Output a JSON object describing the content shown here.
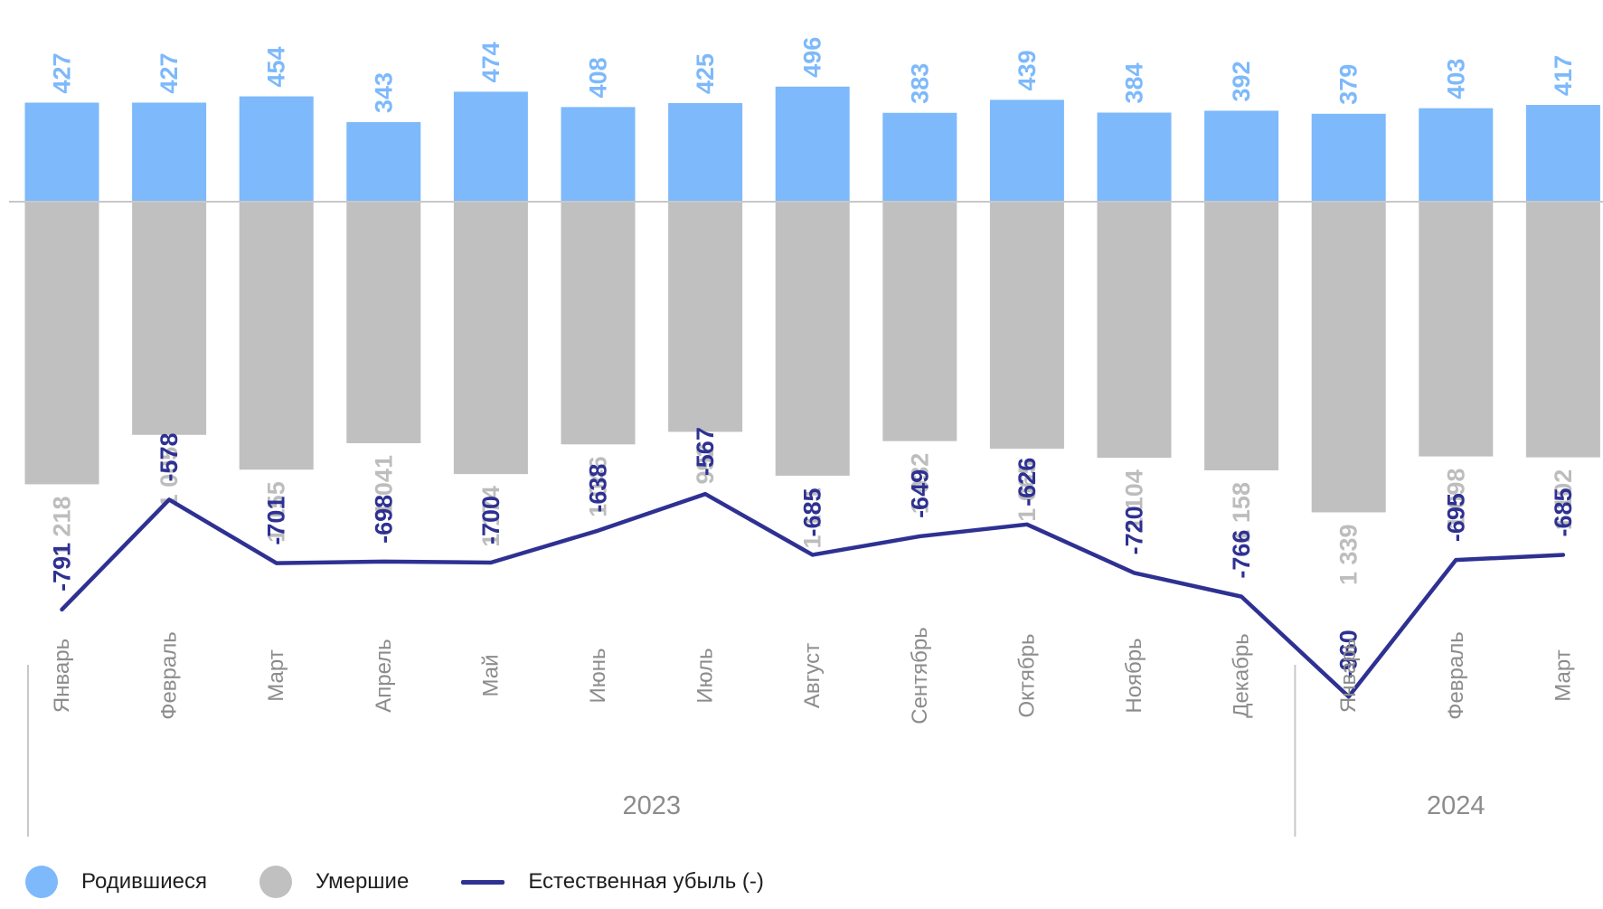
{
  "chart_data": {
    "type": "bar",
    "categories": [
      "Январь",
      "Февраль",
      "Март",
      "Апрель",
      "Май",
      "Июнь",
      "Июль",
      "Август",
      "Сентябрь",
      "Октябрь",
      "Ноябрь",
      "Декабрь",
      "Январь",
      "Февраль",
      "Март"
    ],
    "groups": [
      {
        "label": "2023",
        "count": 12
      },
      {
        "label": "2024",
        "count": 3
      }
    ],
    "series": [
      {
        "name": "Родившиеся",
        "type": "bar",
        "color": "#7db9fb",
        "values": [
          427,
          427,
          454,
          343,
          474,
          408,
          425,
          496,
          383,
          439,
          384,
          392,
          379,
          403,
          417
        ],
        "labels": [
          "427",
          "427",
          "454",
          "343",
          "474",
          "408",
          "425",
          "496",
          "383",
          "439",
          "384",
          "392",
          "379",
          "403",
          "417"
        ]
      },
      {
        "name": "Умершие",
        "type": "bar",
        "color": "#c0c0c0",
        "values": [
          1218,
          1005,
          1155,
          1041,
          1174,
          1046,
          992,
          1181,
          1032,
          1065,
          1104,
          1158,
          1339,
          1098,
          1102
        ],
        "labels": [
          "1 218",
          "1 005",
          "1 155",
          "1 041",
          "1 174",
          "1 046",
          "992",
          "1 181",
          "1 032",
          "1 065",
          "1 104",
          "1 158",
          "1 339",
          "1 098",
          "1 102"
        ]
      },
      {
        "name": "Естественная убыль (-)",
        "type": "line",
        "color": "#2e3192",
        "values": [
          -791,
          -578,
          -701,
          -698,
          -700,
          -638,
          -567,
          -685,
          -649,
          -626,
          -720,
          -766,
          -960,
          -695,
          -685
        ],
        "labels": [
          "-791",
          "-578",
          "-701",
          "-698",
          "-700",
          "-638",
          "-567",
          "-685",
          "-649",
          "-626",
          "-720",
          "-766",
          "-960",
          "-695",
          "-685"
        ]
      }
    ],
    "legend_position": "bottom-left",
    "grid": false
  },
  "colors": {
    "births": "#7db9fb",
    "deaths": "#c0c0c0",
    "decline": "#2e3192",
    "axis_text": "#8c8c8c",
    "births_label": "#7db9fb",
    "deaths_label": "#bdbdbd",
    "axis_line": "#c8c8c8"
  }
}
